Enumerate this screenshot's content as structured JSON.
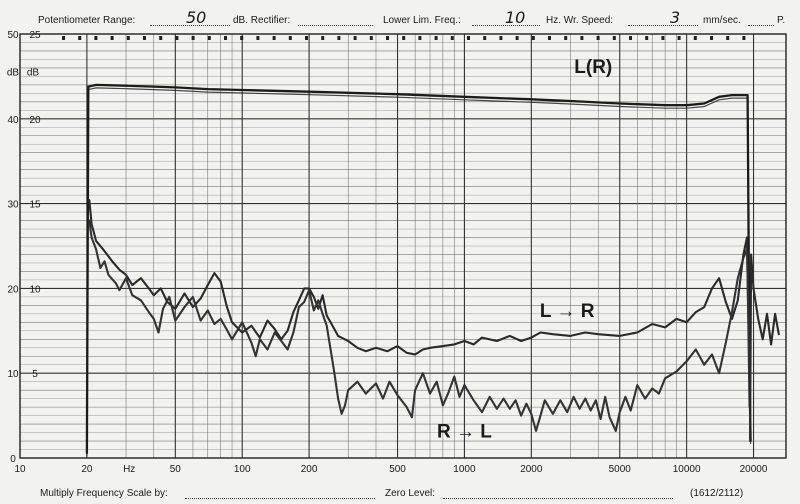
{
  "header": {
    "potentiometer_label": "Potentiometer Range:",
    "potentiometer_value": "50",
    "rectifier_label": "dB. Rectifier:",
    "lower_lim_label": "Lower Lim. Freq.:",
    "lower_lim_value": "10",
    "hz_label": "Hz. Wr. Speed:",
    "speed_value": "3",
    "speed_unit": "mm/sec.",
    "page_label": "P."
  },
  "footer": {
    "multiply_label": "Multiply Frequency Scale by:",
    "zero_label": "Zero Level:",
    "code": "(1612/2112)"
  },
  "chart_data": {
    "type": "line",
    "xlabel": "Hz",
    "x_scale": "log",
    "xlim": [
      10,
      28000
    ],
    "x_ticks": [
      "10",
      "20",
      "50",
      "100",
      "200",
      "500",
      "1000",
      "2000",
      "5000",
      "10000",
      "20000"
    ],
    "ylim": [
      0,
      25
    ],
    "y_axis_label": "dB",
    "y_ticks_outer": [
      "0",
      "10",
      "20",
      "30",
      "40",
      "50"
    ],
    "y_ticks_inner": [
      "5",
      "10",
      "15",
      "20",
      "25"
    ],
    "series": [
      {
        "name": "L(R)",
        "color": "#1c1c1c",
        "points": [
          [
            20,
            0.3
          ],
          [
            20.3,
            21.9
          ],
          [
            22,
            22.0
          ],
          [
            30,
            21.95
          ],
          [
            40,
            21.9
          ],
          [
            50,
            21.85
          ],
          [
            70,
            21.75
          ],
          [
            100,
            21.7
          ],
          [
            200,
            21.6
          ],
          [
            500,
            21.45
          ],
          [
            1000,
            21.3
          ],
          [
            2000,
            21.15
          ],
          [
            3000,
            21.05
          ],
          [
            5000,
            20.9
          ],
          [
            8000,
            20.8
          ],
          [
            10000,
            20.8
          ],
          [
            12000,
            20.9
          ],
          [
            14000,
            21.3
          ],
          [
            16000,
            21.4
          ],
          [
            18000,
            21.4
          ],
          [
            18800,
            21.4
          ],
          [
            19200,
            4.5
          ],
          [
            19400,
            1.0
          ]
        ]
      },
      {
        "name": "L → R",
        "color": "#2a2a2a",
        "points": [
          [
            20.5,
            15.2
          ],
          [
            21,
            13.8
          ],
          [
            22,
            12.8
          ],
          [
            24,
            12.2
          ],
          [
            26,
            11.6
          ],
          [
            28,
            11.1
          ],
          [
            30,
            10.8
          ],
          [
            32,
            10.2
          ],
          [
            35,
            10.6
          ],
          [
            38,
            10.0
          ],
          [
            40,
            9.6
          ],
          [
            43,
            10.0
          ],
          [
            46,
            9.2
          ],
          [
            50,
            8.8
          ],
          [
            55,
            9.7
          ],
          [
            60,
            8.9
          ],
          [
            65,
            9.4
          ],
          [
            70,
            10.2
          ],
          [
            75,
            10.9
          ],
          [
            80,
            10.4
          ],
          [
            85,
            9.0
          ],
          [
            90,
            8.0
          ],
          [
            100,
            7.4
          ],
          [
            110,
            7.8
          ],
          [
            120,
            7.1
          ],
          [
            130,
            8.1
          ],
          [
            140,
            7.6
          ],
          [
            150,
            7.0
          ],
          [
            160,
            7.5
          ],
          [
            170,
            8.6
          ],
          [
            180,
            9.3
          ],
          [
            190,
            10.0
          ],
          [
            200,
            10.0
          ],
          [
            210,
            9.5
          ],
          [
            220,
            8.8
          ],
          [
            230,
            9.6
          ],
          [
            240,
            8.4
          ],
          [
            250,
            8.0
          ],
          [
            270,
            7.2
          ],
          [
            300,
            6.9
          ],
          [
            330,
            6.5
          ],
          [
            360,
            6.3
          ],
          [
            400,
            6.5
          ],
          [
            450,
            6.3
          ],
          [
            500,
            6.6
          ],
          [
            550,
            6.2
          ],
          [
            600,
            6.1
          ],
          [
            650,
            6.4
          ],
          [
            700,
            6.5
          ],
          [
            800,
            6.6
          ],
          [
            900,
            6.7
          ],
          [
            1000,
            6.9
          ],
          [
            1100,
            6.7
          ],
          [
            1200,
            7.1
          ],
          [
            1400,
            6.9
          ],
          [
            1600,
            7.2
          ],
          [
            1800,
            6.9
          ],
          [
            2000,
            7.1
          ],
          [
            2200,
            7.4
          ],
          [
            2500,
            7.3
          ],
          [
            3000,
            7.2
          ],
          [
            3500,
            7.4
          ],
          [
            4000,
            7.3
          ],
          [
            5000,
            7.2
          ],
          [
            6000,
            7.4
          ],
          [
            7000,
            7.9
          ],
          [
            8000,
            7.7
          ],
          [
            9000,
            8.2
          ],
          [
            10000,
            8.0
          ],
          [
            11000,
            8.6
          ],
          [
            12000,
            8.9
          ],
          [
            13000,
            10.0
          ],
          [
            14000,
            10.6
          ],
          [
            15000,
            9.2
          ],
          [
            16000,
            8.2
          ],
          [
            17000,
            9.3
          ],
          [
            18000,
            12.0
          ],
          [
            18700,
            13.0
          ],
          [
            19200,
            3.0
          ]
        ]
      },
      {
        "name": "R → L",
        "color": "#333333",
        "points": [
          [
            20.5,
            14.0
          ],
          [
            21,
            13.0
          ],
          [
            22,
            12.3
          ],
          [
            23,
            11.2
          ],
          [
            24,
            11.6
          ],
          [
            25,
            10.8
          ],
          [
            27,
            10.3
          ],
          [
            28,
            9.9
          ],
          [
            30,
            10.6
          ],
          [
            32,
            9.6
          ],
          [
            35,
            9.3
          ],
          [
            38,
            8.6
          ],
          [
            40,
            8.2
          ],
          [
            42,
            7.4
          ],
          [
            44,
            8.8
          ],
          [
            47,
            9.5
          ],
          [
            50,
            8.1
          ],
          [
            55,
            8.9
          ],
          [
            60,
            9.5
          ],
          [
            65,
            8.1
          ],
          [
            70,
            8.7
          ],
          [
            75,
            7.9
          ],
          [
            80,
            8.2
          ],
          [
            85,
            7.6
          ],
          [
            90,
            7.0
          ],
          [
            100,
            8.0
          ],
          [
            110,
            6.8
          ],
          [
            115,
            6.0
          ],
          [
            120,
            7.0
          ],
          [
            130,
            6.4
          ],
          [
            140,
            7.4
          ],
          [
            150,
            6.9
          ],
          [
            160,
            6.4
          ],
          [
            170,
            7.4
          ],
          [
            180,
            8.9
          ],
          [
            190,
            9.2
          ],
          [
            200,
            9.9
          ],
          [
            210,
            8.7
          ],
          [
            220,
            9.3
          ],
          [
            230,
            8.5
          ],
          [
            240,
            7.8
          ],
          [
            250,
            6.4
          ],
          [
            260,
            5.0
          ],
          [
            270,
            3.5
          ],
          [
            280,
            2.6
          ],
          [
            290,
            3.1
          ],
          [
            300,
            4.0
          ],
          [
            330,
            4.5
          ],
          [
            360,
            3.8
          ],
          [
            400,
            4.4
          ],
          [
            430,
            3.5
          ],
          [
            460,
            4.5
          ],
          [
            500,
            3.7
          ],
          [
            550,
            3.0
          ],
          [
            580,
            2.4
          ],
          [
            600,
            4.0
          ],
          [
            650,
            5.0
          ],
          [
            700,
            3.8
          ],
          [
            750,
            4.5
          ],
          [
            800,
            3.1
          ],
          [
            850,
            3.9
          ],
          [
            900,
            4.8
          ],
          [
            950,
            3.6
          ],
          [
            1000,
            4.3
          ],
          [
            1100,
            3.4
          ],
          [
            1200,
            2.7
          ],
          [
            1300,
            3.6
          ],
          [
            1400,
            2.9
          ],
          [
            1500,
            3.5
          ],
          [
            1600,
            2.9
          ],
          [
            1700,
            3.4
          ],
          [
            1800,
            2.5
          ],
          [
            1900,
            3.2
          ],
          [
            2000,
            2.6
          ],
          [
            2100,
            1.6
          ],
          [
            2200,
            2.5
          ],
          [
            2300,
            3.4
          ],
          [
            2500,
            2.6
          ],
          [
            2700,
            3.4
          ],
          [
            2900,
            2.7
          ],
          [
            3100,
            3.6
          ],
          [
            3300,
            2.9
          ],
          [
            3500,
            3.5
          ],
          [
            3700,
            2.8
          ],
          [
            3900,
            3.4
          ],
          [
            4100,
            2.3
          ],
          [
            4300,
            3.6
          ],
          [
            4500,
            2.4
          ],
          [
            4800,
            1.6
          ],
          [
            5000,
            2.7
          ],
          [
            5300,
            3.6
          ],
          [
            5600,
            2.8
          ],
          [
            6000,
            4.3
          ],
          [
            6500,
            3.5
          ],
          [
            7000,
            4.1
          ],
          [
            7500,
            3.8
          ],
          [
            8000,
            4.7
          ],
          [
            9000,
            5.1
          ],
          [
            10000,
            5.7
          ],
          [
            11000,
            6.4
          ],
          [
            12000,
            5.5
          ],
          [
            13000,
            6.1
          ],
          [
            14000,
            5.0
          ],
          [
            15000,
            6.8
          ],
          [
            16000,
            8.6
          ],
          [
            17000,
            10.6
          ],
          [
            18000,
            11.8
          ],
          [
            18700,
            12.3
          ],
          [
            19200,
            5.0
          ]
        ]
      },
      {
        "name": "",
        "color": "#2a2a2a",
        "points": [
          [
            19300,
            1.0
          ],
          [
            19500,
            12.0
          ],
          [
            20000,
            10.0
          ],
          [
            21000,
            8.2
          ],
          [
            22000,
            7.0
          ],
          [
            23000,
            8.5
          ],
          [
            24000,
            6.7
          ],
          [
            25000,
            8.5
          ],
          [
            26000,
            7.3
          ]
        ]
      }
    ],
    "annotations": [
      {
        "text": "L(R)",
        "x": 3800,
        "y": 22.7
      },
      {
        "text": "L → R",
        "x": 2900,
        "y": 8.3
      },
      {
        "text": "R → L",
        "x": 1000,
        "y": 1.2
      }
    ]
  }
}
